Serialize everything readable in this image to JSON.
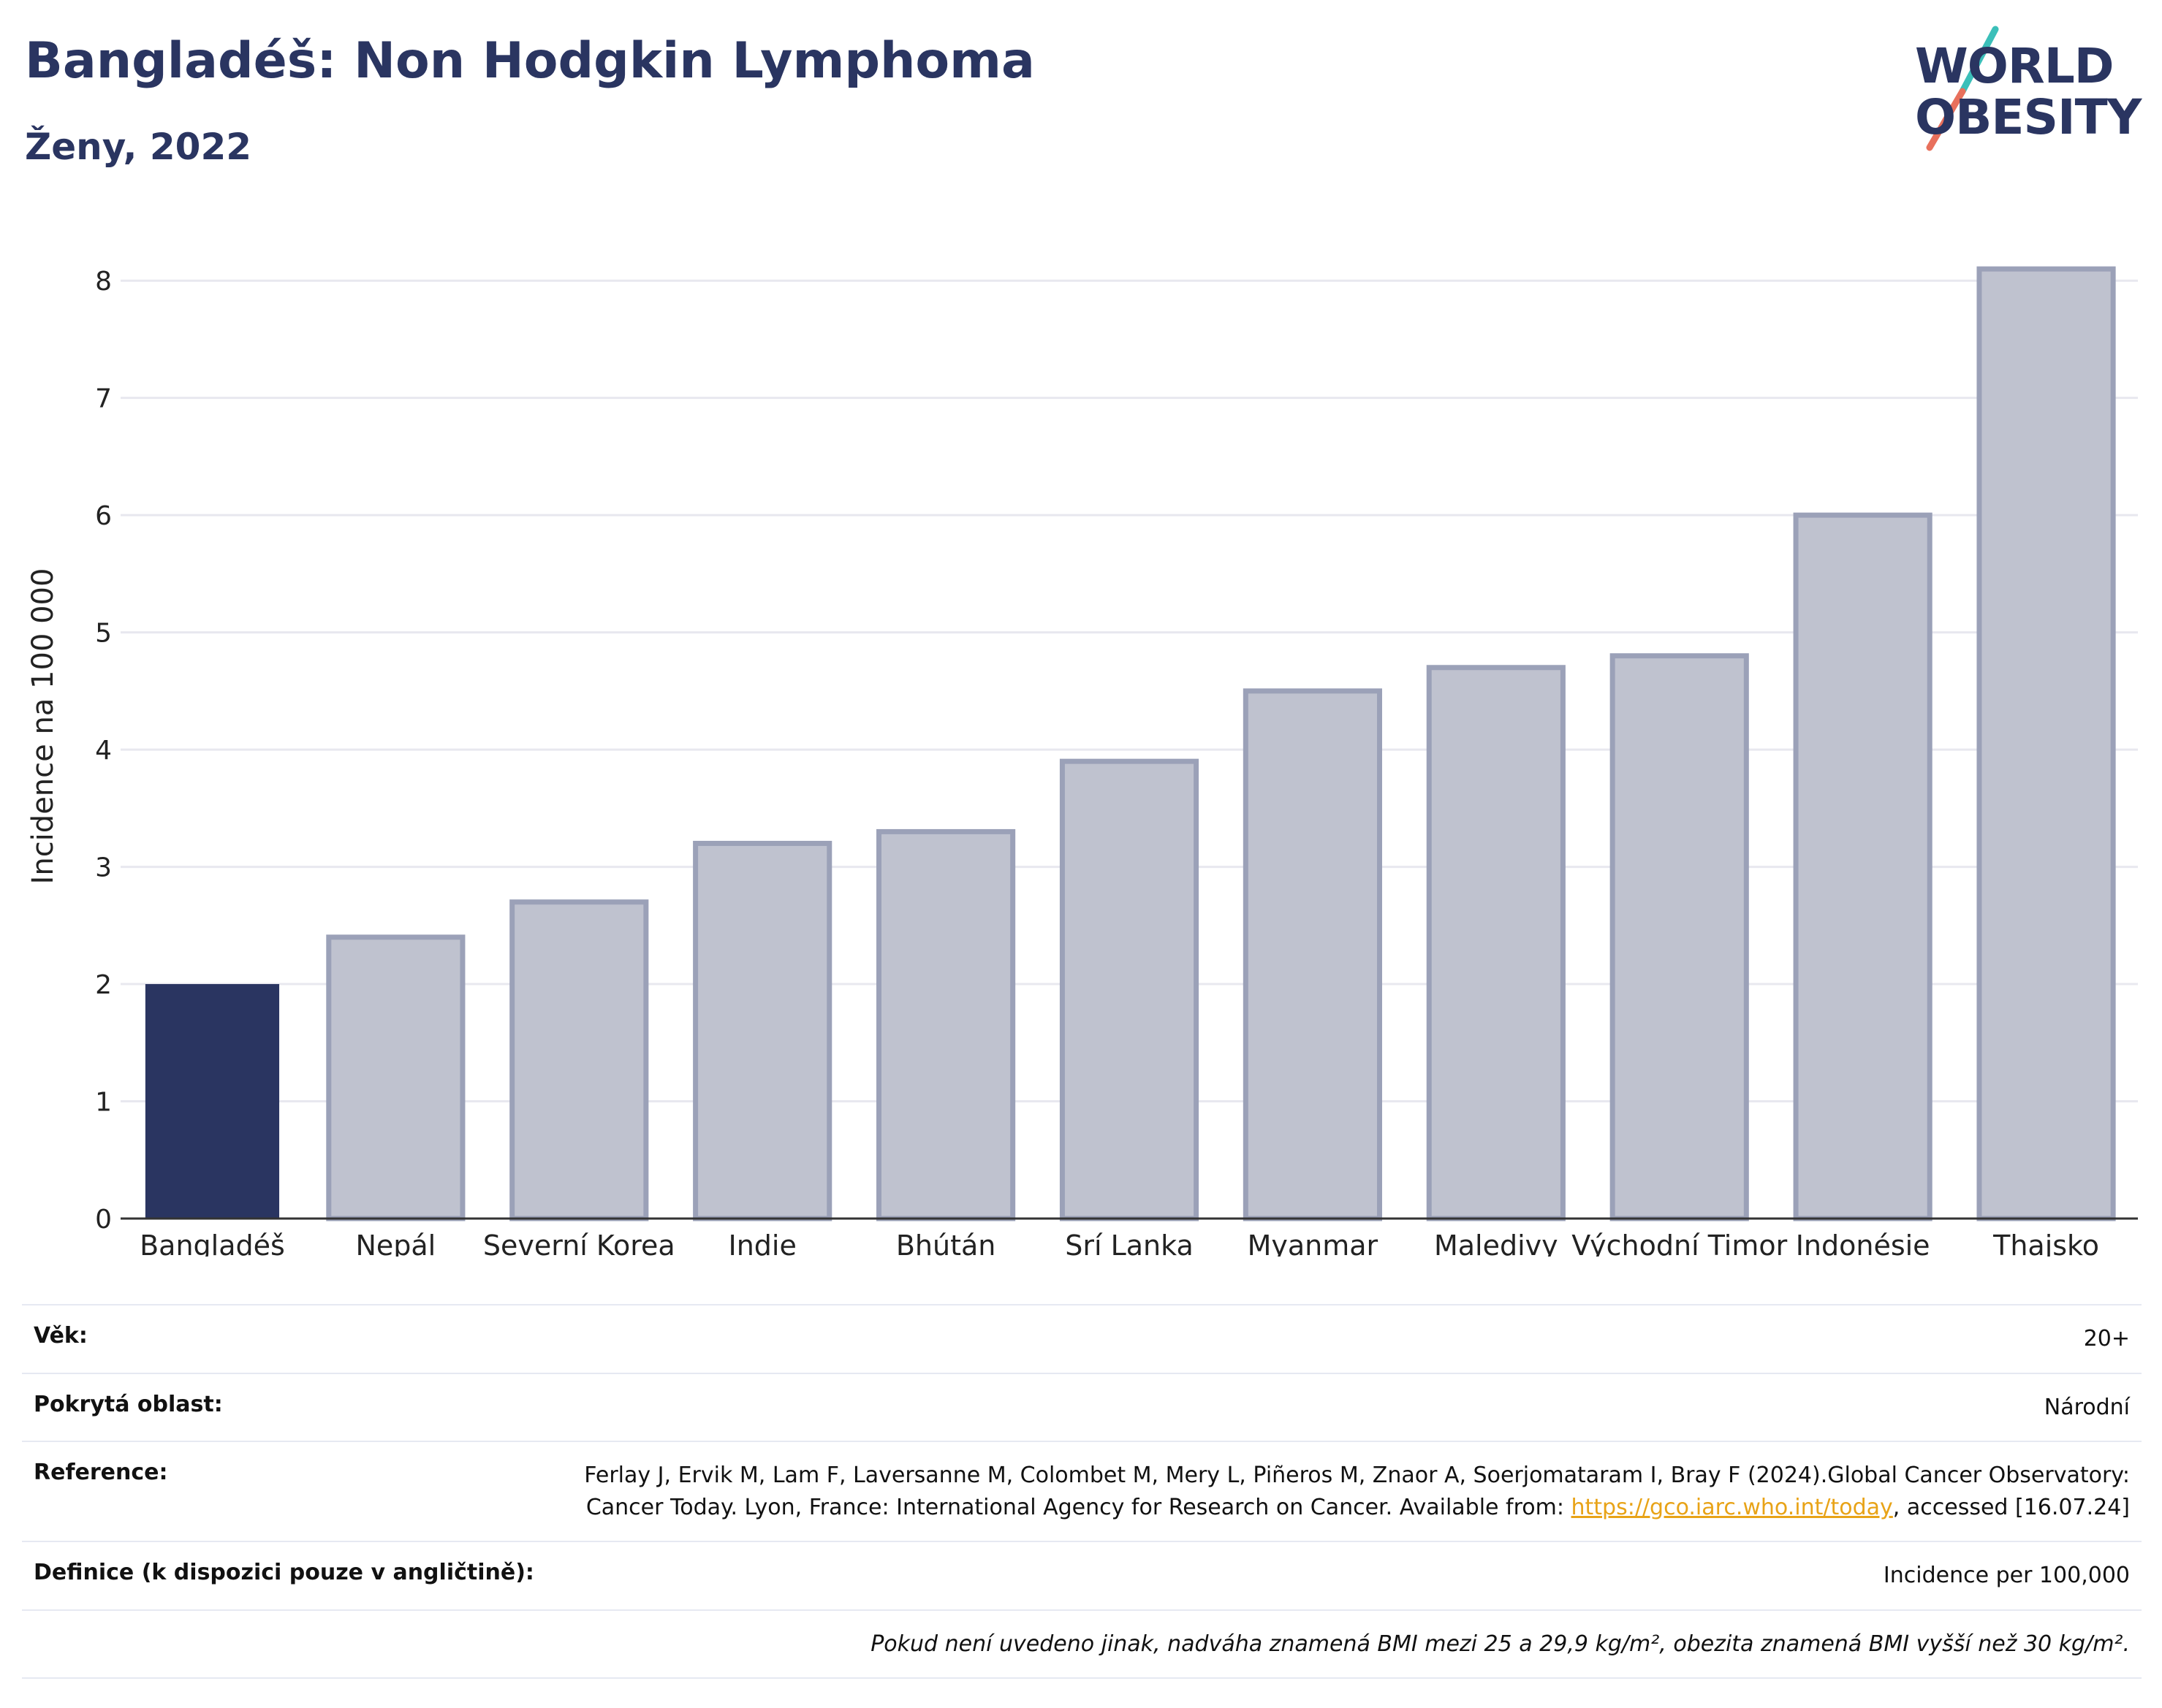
{
  "header": {
    "title": "Bangladéš: Non Hodgkin Lymphoma",
    "subtitle": "Ženy, 2022"
  },
  "logo": {
    "line1": "WORLD",
    "line2": "OBESITY",
    "colors": {
      "text": "#2a3561",
      "slash_top": "#3bbfb9",
      "slash_bottom": "#e8705c"
    }
  },
  "chart_data": {
    "type": "bar",
    "categories": [
      "Bangladéš",
      "Nepál",
      "Severní Korea",
      "Indie",
      "Bhútán",
      "Srí Lanka",
      "Myanmar",
      "Maledivy",
      "Východní Timor",
      "Indonésie",
      "Thajsko"
    ],
    "values": [
      2.0,
      2.4,
      2.7,
      3.2,
      3.3,
      3.9,
      4.5,
      4.7,
      4.8,
      6.0,
      8.1
    ],
    "highlight_index": 0,
    "ylabel": "Incidence na 100 000",
    "xlabel": "",
    "ylim": [
      0,
      8.4
    ],
    "yticks": [
      0,
      1,
      2,
      3,
      4,
      5,
      6,
      7,
      8
    ],
    "grid": true,
    "colors": {
      "highlight": "#2a3561",
      "bar_fill": "#bfc2cf",
      "bar_stroke": "#9ba1b8",
      "grid": "#e8e8ef",
      "axis": "#333333"
    }
  },
  "info": {
    "age_label": "Věk:",
    "age_value": "20+",
    "area_label": "Pokrytá oblast:",
    "area_value": "Národní",
    "reference_label": "Reference:",
    "reference_text_1": "Ferlay J, Ervik M, Lam F, Laversanne M, Colombet M, Mery L, Piñeros M, Znaor A, Soerjomataram I, Bray F (2024).Global Cancer Observatory: Cancer Today. Lyon, France: International Agency for Research on Cancer. Available from: ",
    "reference_link": "https://gco.iarc.who.int/today",
    "reference_text_2": ", accessed [16.07.24]",
    "definition_label": "Definice (k dispozici pouze v angličtině):",
    "definition_value": "Incidence per 100,000",
    "note": "Pokud není uvedeno jinak, nadváha znamená BMI mezi 25 a 29,9 kg/m², obezita znamená BMI vyšší než 30 kg/m²."
  }
}
